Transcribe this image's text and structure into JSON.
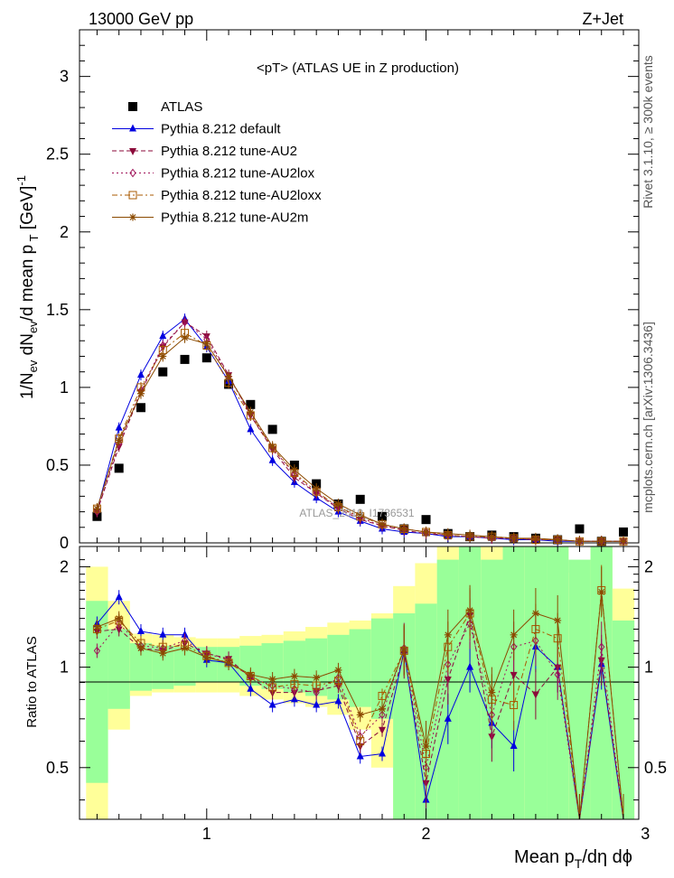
{
  "header": {
    "left": "13000 GeV pp",
    "right": "Z+Jet",
    "plot_title": "<pT> (ATLAS UE in Z production)"
  },
  "side_labels": {
    "rivet": "Rivet 3.1.10, ≥ 300k events",
    "mcplots": "mcplots.cern.ch [arXiv:1306.3436]"
  },
  "watermark": "ATLAS_2019_I1736531",
  "colors": {
    "ATLAS": "#000000",
    "default": "#0000e0",
    "AU2": "#8b0a3a",
    "AU2lox": "#a0145a",
    "AU2loxx": "#a85a00",
    "AU2m": "#8b4a00",
    "band_inner": "#99ff99",
    "band_outer": "#ffff99"
  },
  "chart_data": [
    {
      "type": "scatter",
      "panel": "main",
      "title": "<pT> (ATLAS UE in Z production)",
      "xlabel": "Mean p_T/dη dϕ",
      "ylabel": "1/N_ev dN_ev/d mean p_T [GeV]^-1",
      "xlim": [
        0.42,
        2.97
      ],
      "ylim": [
        0,
        3.3
      ],
      "xticks": [
        1,
        2,
        3
      ],
      "yticks": [
        0,
        0.5,
        1,
        1.5,
        2,
        2.5,
        3
      ],
      "ytick_labels": [
        "0",
        "0.5",
        "1",
        "1.5",
        "2",
        "2.5",
        "3"
      ],
      "legend_position": "top-left",
      "x": [
        0.5,
        0.6,
        0.7,
        0.8,
        0.9,
        1.0,
        1.1,
        1.2,
        1.3,
        1.4,
        1.5,
        1.6,
        1.7,
        1.8,
        1.9,
        2.0,
        2.1,
        2.2,
        2.3,
        2.4,
        2.5,
        2.6,
        2.7,
        2.8,
        2.9
      ],
      "series": [
        {
          "name": "ATLAS",
          "key": "ATLAS",
          "style": "data",
          "values": [
            0.17,
            0.48,
            0.87,
            1.1,
            1.18,
            1.19,
            1.02,
            0.89,
            0.73,
            0.5,
            0.38,
            0.25,
            0.28,
            0.17,
            0.09,
            0.15,
            0.06,
            0.04,
            0.05,
            0.04,
            0.03,
            0.02,
            0.09,
            0.01,
            0.07
          ]
        },
        {
          "name": "Pythia 8.212 default",
          "key": "default",
          "marker": "triangle",
          "dash": "",
          "values": [
            0.21,
            0.74,
            1.08,
            1.33,
            1.44,
            1.26,
            1.04,
            0.73,
            0.53,
            0.39,
            0.29,
            0.2,
            0.14,
            0.09,
            0.07,
            0.06,
            0.04,
            0.04,
            0.03,
            0.02,
            0.02,
            0.01,
            0.01,
            0.01,
            0.01
          ]
        },
        {
          "name": "Pythia 8.212 tune-AU2",
          "key": "AU2",
          "marker": "triangle-down",
          "dash": "5,3",
          "values": [
            0.2,
            0.62,
            0.97,
            1.26,
            1.42,
            1.33,
            1.08,
            0.82,
            0.6,
            0.42,
            0.32,
            0.22,
            0.15,
            0.11,
            0.08,
            0.06,
            0.05,
            0.04,
            0.03,
            0.03,
            0.02,
            0.02,
            0.01,
            0.01,
            0.01
          ]
        },
        {
          "name": "Pythia 8.212 tune-AU2lox",
          "key": "AU2lox",
          "marker": "diamond",
          "dash": "2,3",
          "values": [
            0.2,
            0.64,
            0.98,
            1.27,
            1.42,
            1.31,
            1.07,
            0.83,
            0.61,
            0.44,
            0.32,
            0.23,
            0.16,
            0.11,
            0.09,
            0.07,
            0.05,
            0.04,
            0.03,
            0.03,
            0.02,
            0.02,
            0.01,
            0.01,
            0.01
          ]
        },
        {
          "name": "Pythia 8.212 tune-AU2loxx",
          "key": "AU2loxx",
          "marker": "square",
          "dash": "6,3,2,3",
          "values": [
            0.22,
            0.67,
            1.0,
            1.24,
            1.35,
            1.27,
            1.03,
            0.82,
            0.61,
            0.45,
            0.33,
            0.23,
            0.17,
            0.12,
            0.09,
            0.07,
            0.05,
            0.04,
            0.04,
            0.03,
            0.02,
            0.02,
            0.01,
            0.01,
            0.01
          ]
        },
        {
          "name": "Pythia 8.212 tune-AU2m",
          "key": "AU2m",
          "marker": "star",
          "dash": "",
          "values": [
            0.22,
            0.66,
            0.96,
            1.2,
            1.32,
            1.28,
            1.07,
            0.84,
            0.62,
            0.47,
            0.35,
            0.25,
            0.18,
            0.12,
            0.09,
            0.07,
            0.06,
            0.05,
            0.04,
            0.03,
            0.03,
            0.02,
            0.01,
            0.01,
            0.01
          ]
        }
      ]
    },
    {
      "type": "line",
      "panel": "ratio",
      "ylabel": "Ratio to ATLAS",
      "xlabel": "Mean p_T/dη dϕ",
      "xlim": [
        0.42,
        2.97
      ],
      "ylim": [
        0.35,
        2.3
      ],
      "xticks": [
        1,
        2,
        3
      ],
      "xtick_labels": [
        "1",
        "2",
        "3"
      ],
      "yticks": [
        0.5,
        1,
        2
      ],
      "ytick_labels": [
        "0.5",
        "1",
        "2"
      ],
      "reference_line": 1,
      "x": [
        0.5,
        0.6,
        0.7,
        0.8,
        0.9,
        1.0,
        1.1,
        1.2,
        1.3,
        1.4,
        1.5,
        1.6,
        1.7,
        1.8,
        1.9,
        2.0,
        2.1,
        2.2,
        2.3,
        2.4,
        2.5,
        2.6,
        2.7,
        2.8,
        2.9
      ],
      "band_inner": {
        "lo": [
          0.45,
          0.75,
          0.85,
          0.86,
          0.88,
          0.9,
          0.9,
          0.88,
          0.86,
          0.84,
          0.82,
          0.8,
          0.76,
          0.7,
          0.35,
          0.35,
          0.35,
          0.35,
          0.35,
          0.35,
          0.35,
          0.35,
          0.35,
          0.35,
          0.35
        ],
        "hi": [
          1.58,
          1.3,
          1.18,
          1.16,
          1.15,
          1.15,
          1.15,
          1.16,
          1.18,
          1.2,
          1.22,
          1.25,
          1.3,
          1.4,
          1.45,
          1.55,
          2.1,
          2.3,
          2.1,
          2.3,
          2.3,
          2.3,
          2.1,
          2.3,
          1.38
        ]
      },
      "band_outer": {
        "lo": [
          0.35,
          0.65,
          0.82,
          0.84,
          0.84,
          0.84,
          0.84,
          0.82,
          0.8,
          0.78,
          0.76,
          0.72,
          0.65,
          0.5,
          0.35,
          0.35,
          0.35,
          0.35,
          0.35,
          0.35,
          0.35,
          0.35,
          0.35,
          0.35,
          0.35
        ],
        "hi": [
          2.0,
          1.58,
          1.26,
          1.25,
          1.23,
          1.22,
          1.22,
          1.24,
          1.25,
          1.28,
          1.32,
          1.36,
          1.38,
          1.45,
          1.75,
          2.05,
          2.3,
          2.3,
          2.3,
          2.3,
          2.3,
          2.3,
          1.92,
          2.3,
          1.72
        ]
      },
      "series": [
        {
          "key": "default",
          "marker": "triangle",
          "dash": "",
          "values": [
            1.35,
            1.62,
            1.28,
            1.25,
            1.25,
            1.05,
            1.03,
            0.86,
            0.77,
            0.8,
            0.77,
            0.79,
            0.54,
            0.55,
            1.12,
            0.4,
            0.7,
            1.0,
            0.68,
            0.58,
            1.15,
            1.0,
            0.35,
            1.02,
            0.35
          ]
        },
        {
          "key": "AU2",
          "marker": "triangle-down",
          "dash": "5,3",
          "values": [
            1.28,
            1.3,
            1.14,
            1.12,
            1.18,
            1.1,
            1.06,
            0.93,
            0.84,
            0.84,
            0.85,
            0.88,
            0.58,
            0.65,
            1.1,
            0.45,
            0.92,
            1.43,
            0.62,
            0.95,
            0.83,
            1.0,
            0.35,
            1.05,
            0.35
          ]
        },
        {
          "key": "AU2lox",
          "marker": "diamond",
          "dash": "2,3",
          "values": [
            1.12,
            1.35,
            1.16,
            1.14,
            1.2,
            1.1,
            1.05,
            0.93,
            0.88,
            0.86,
            0.84,
            0.93,
            0.62,
            0.72,
            1.14,
            0.5,
            1.02,
            1.35,
            0.72,
            1.15,
            1.2,
            0.95,
            0.35,
            1.15,
            0.35
          ]
        },
        {
          "key": "AU2loxx",
          "marker": "square",
          "dash": "6,3,2,3",
          "values": [
            1.3,
            1.38,
            1.18,
            1.15,
            1.16,
            1.08,
            1.03,
            0.94,
            0.87,
            0.89,
            0.88,
            0.91,
            0.6,
            0.82,
            1.12,
            0.55,
            1.15,
            1.45,
            0.8,
            0.77,
            1.3,
            1.22,
            0.35,
            1.7,
            0.35
          ]
        },
        {
          "key": "AU2m",
          "marker": "star",
          "dash": "",
          "values": [
            1.32,
            1.4,
            1.14,
            1.1,
            1.14,
            1.07,
            1.03,
            0.95,
            0.92,
            0.94,
            0.93,
            0.98,
            0.72,
            0.75,
            1.13,
            0.58,
            1.25,
            1.48,
            0.84,
            1.25,
            1.45,
            1.38,
            0.35,
            1.68,
            0.35
          ]
        }
      ]
    }
  ]
}
